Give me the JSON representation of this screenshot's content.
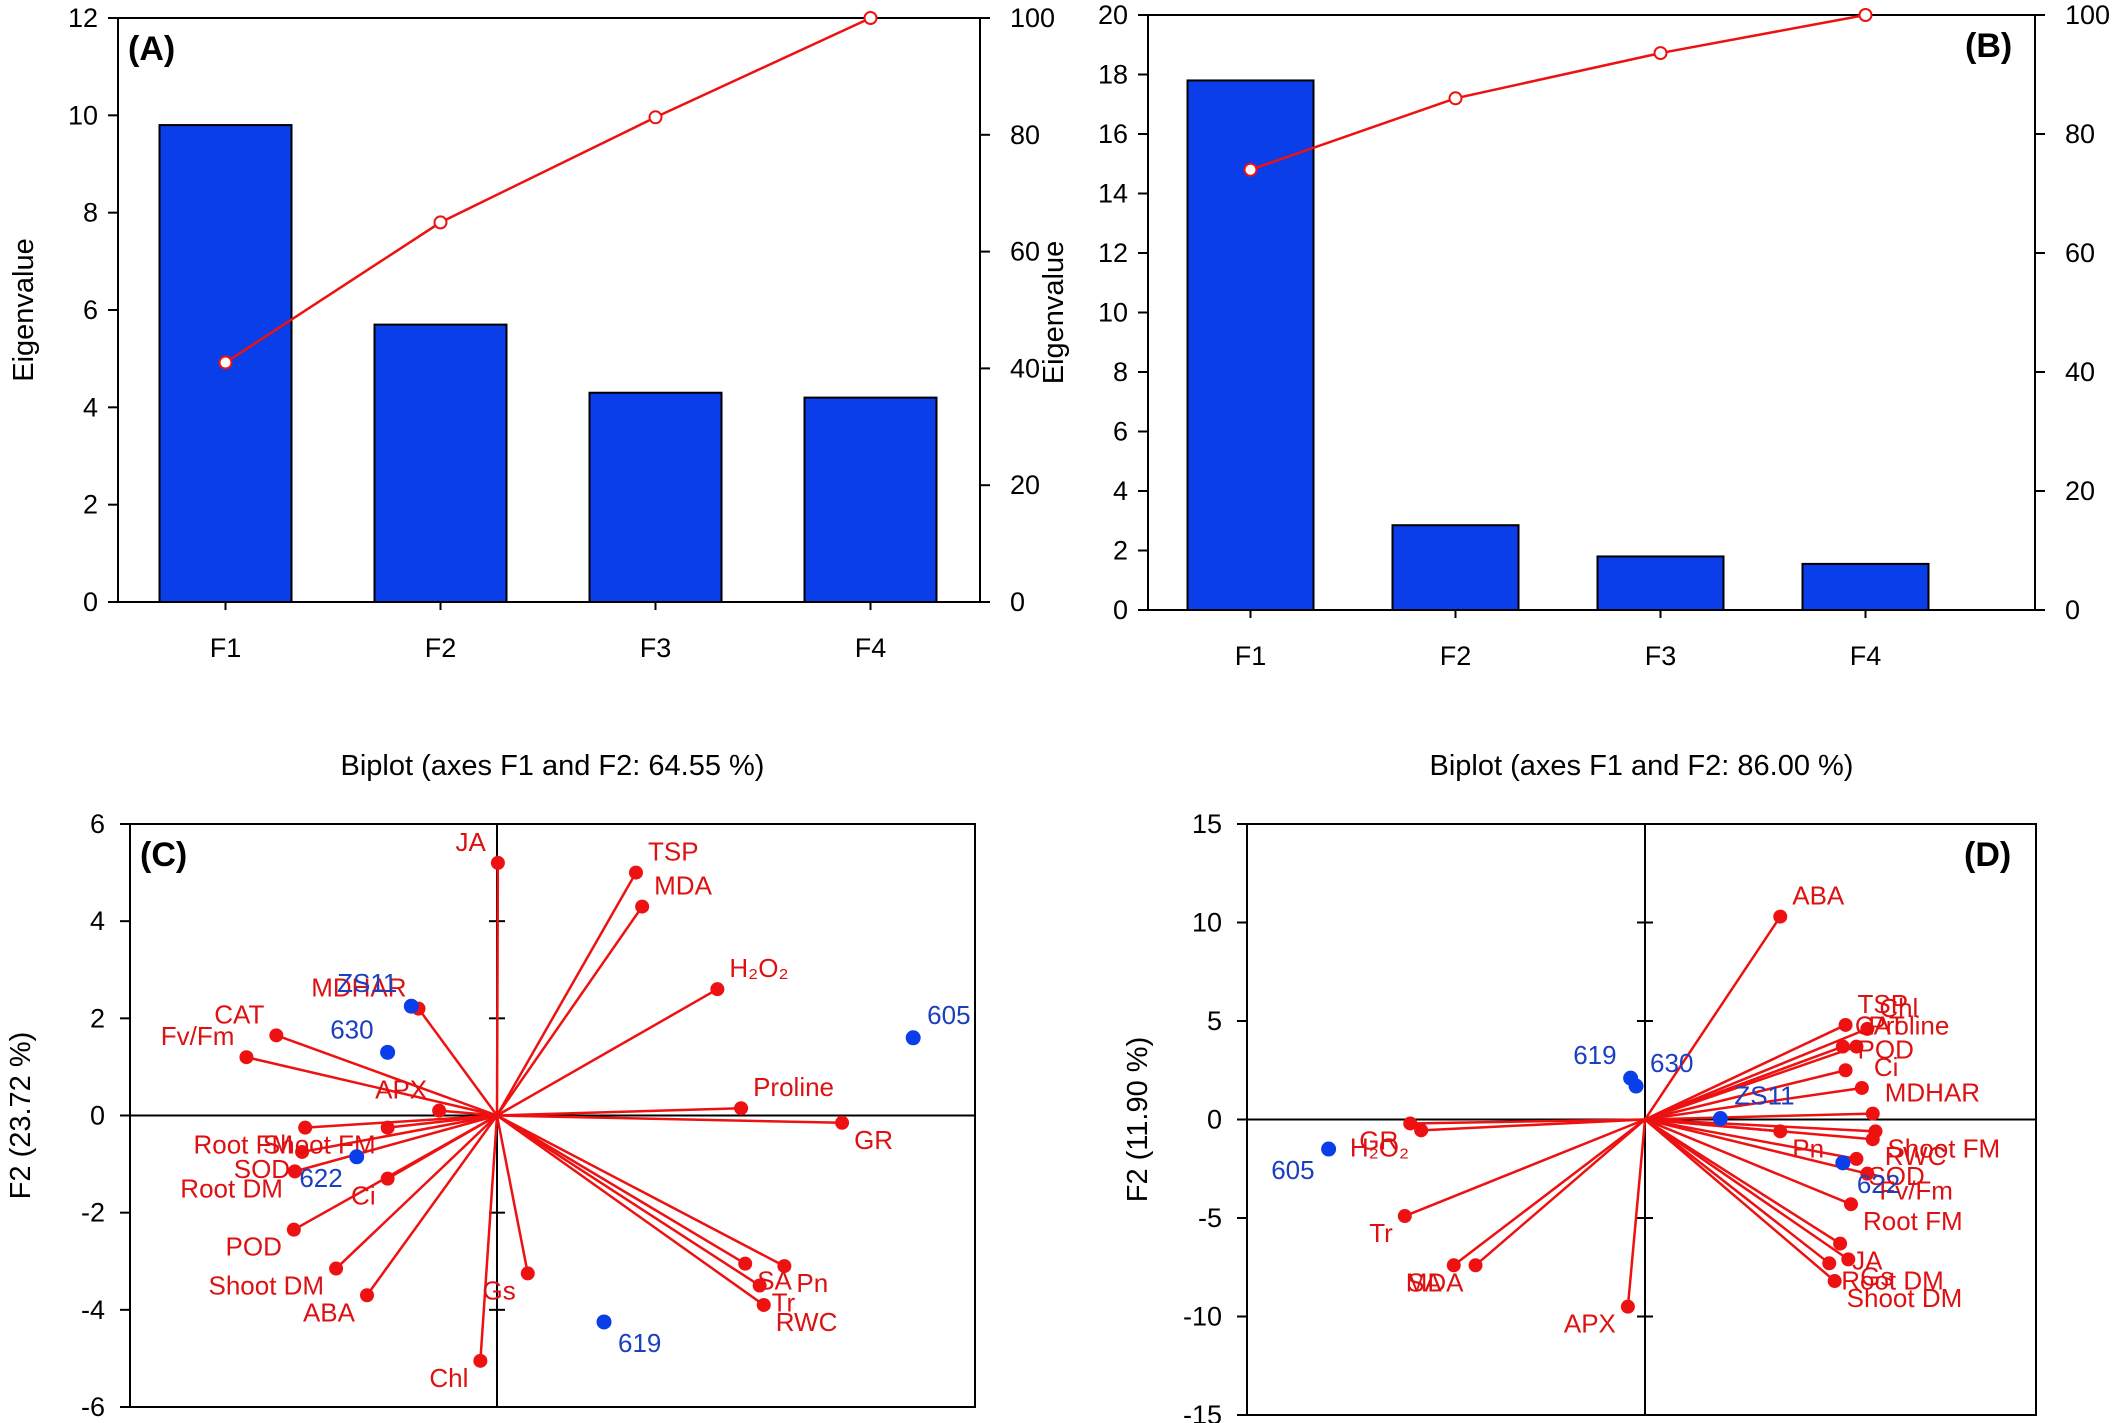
{
  "panels": [
    {
      "id": "A",
      "label": "(A)",
      "chart_data": {
        "type": "bar",
        "categories": [
          "F1",
          "F2",
          "F3",
          "F4"
        ],
        "values": [
          9.8,
          5.7,
          4.3,
          4.2
        ],
        "cumulative_percent": [
          41,
          65,
          83,
          100
        ],
        "ylabel": "Eigenvalue",
        "ylim": [
          0,
          12
        ],
        "yticks": [
          "0",
          "2",
          "4",
          "6",
          "8",
          "10",
          "12"
        ],
        "y2lim": [
          0,
          100
        ],
        "y2ticks": [
          "0",
          "20",
          "40",
          "60",
          "80",
          "100"
        ]
      }
    },
    {
      "id": "B",
      "label": "(B)",
      "chart_data": {
        "type": "bar",
        "categories": [
          "F1",
          "F2",
          "F3",
          "F4"
        ],
        "values": [
          17.8,
          2.85,
          1.8,
          1.55
        ],
        "cumulative_percent": [
          74,
          86,
          93.6,
          100
        ],
        "ylabel": "Eigenvalue",
        "ylim": [
          0,
          20
        ],
        "yticks": [
          "0",
          "2",
          "4",
          "6",
          "8",
          "10",
          "12",
          "14",
          "16",
          "18",
          "20"
        ],
        "y2lim": [
          0,
          100
        ],
        "y2ticks": [
          "0",
          "20",
          "40",
          "60",
          "80",
          "100"
        ]
      }
    },
    {
      "id": "C",
      "label": "(C)",
      "chart_data": {
        "type": "scatter",
        "title": "Biplot (axes F1 and F2: 64.55 %)",
        "ylabel": "F2 (23.72 %)",
        "ylim": [
          -6,
          6
        ],
        "yticks": [
          "-6",
          "-4",
          "-2",
          "0",
          "2",
          "4",
          "6"
        ],
        "xlim": [
          -4.0,
          4.2
        ],
        "variables": [
          {
            "name": "JA",
            "x": -0.43,
            "y": 5.2
          },
          {
            "name": "TSP",
            "x": 0.91,
            "y": 5.0
          },
          {
            "name": "MDA",
            "x": 0.97,
            "y": 4.3
          },
          {
            "name": "H₂O₂",
            "x": 1.7,
            "y": 2.6
          },
          {
            "name": "Proline",
            "x": 1.93,
            "y": 0.15
          },
          {
            "name": "GR",
            "x": 2.91,
            "y": -0.15
          },
          {
            "name": "CAT",
            "x": -2.58,
            "y": 1.65
          },
          {
            "name": "Fv/Fm",
            "x": -2.87,
            "y": 1.2
          },
          {
            "name": "MDHAR",
            "x": -1.2,
            "y": 2.2
          },
          {
            "name": "APX",
            "x": -1.0,
            "y": 0.1
          },
          {
            "name": "Root FM",
            "x": -2.3,
            "y": -0.25
          },
          {
            "name": "SOD",
            "x": -2.33,
            "y": -0.75
          },
          {
            "name": "Root DM",
            "x": -2.4,
            "y": -1.15
          },
          {
            "name": "Ci",
            "x": -1.5,
            "y": -1.3
          },
          {
            "name": "Shoot FM",
            "x": -1.5,
            "y": -0.25
          },
          {
            "name": "POD",
            "x": -2.41,
            "y": -2.35
          },
          {
            "name": "Shoot DM",
            "x": -2.0,
            "y": -3.15
          },
          {
            "name": "ABA",
            "x": -1.7,
            "y": -3.7
          },
          {
            "name": "Chl",
            "x": -0.6,
            "y": -5.05
          },
          {
            "name": "Gs",
            "x": -0.14,
            "y": -3.25
          },
          {
            "name": "Pn",
            "x": 2.35,
            "y": -3.1
          },
          {
            "name": "SA",
            "x": 1.97,
            "y": -3.05
          },
          {
            "name": "Tr",
            "x": 2.11,
            "y": -3.5
          },
          {
            "name": "RWC",
            "x": 2.15,
            "y": -3.9
          }
        ],
        "observations": [
          {
            "name": "ZS11",
            "x": -1.27,
            "y": 2.25
          },
          {
            "name": "630",
            "x": -1.5,
            "y": 1.3
          },
          {
            "name": "605",
            "x": 3.6,
            "y": 1.6
          },
          {
            "name": "622",
            "x": -1.8,
            "y": -0.85
          },
          {
            "name": "619",
            "x": 0.6,
            "y": -4.25
          }
        ]
      }
    },
    {
      "id": "D",
      "label": "(D)",
      "chart_data": {
        "type": "scatter",
        "title": "Biplot (axes F1 and F2: 86.00 %)",
        "ylabel": "F2 (11.90 %)",
        "ylim": [
          -15,
          15
        ],
        "yticks": [
          "-15",
          "-10",
          "-5",
          "0",
          "5",
          "10",
          "15"
        ],
        "xlim": [
          -7.1,
          7.4
        ],
        "variables": [
          {
            "name": "ABA",
            "x": 2.7,
            "y": 10.3
          },
          {
            "name": "TSP",
            "x": 3.9,
            "y": 4.8
          },
          {
            "name": "Chl",
            "x": 4.3,
            "y": 4.6
          },
          {
            "name": "CAT",
            "x": 3.85,
            "y": 3.7
          },
          {
            "name": "Proline",
            "x": 4.1,
            "y": 3.7
          },
          {
            "name": "POD",
            "x": 3.9,
            "y": 2.5
          },
          {
            "name": "Ci",
            "x": 4.2,
            "y": 1.6
          },
          {
            "name": "MDHAR",
            "x": 4.4,
            "y": 0.3
          },
          {
            "name": "Shoot FM",
            "x": 4.45,
            "y": -0.6
          },
          {
            "name": "RWC",
            "x": 4.4,
            "y": -1.0
          },
          {
            "name": "Pn",
            "x": 2.7,
            "y": -0.6
          },
          {
            "name": "SOD",
            "x": 4.1,
            "y": -2.0
          },
          {
            "name": "Fv/Fm",
            "x": 4.3,
            "y": -2.75
          },
          {
            "name": "Root FM",
            "x": 4.0,
            "y": -4.3
          },
          {
            "name": "JA",
            "x": 3.8,
            "y": -6.3
          },
          {
            "name": "Gs",
            "x": 3.95,
            "y": -7.1
          },
          {
            "name": "Root DM",
            "x": 3.6,
            "y": -7.3
          },
          {
            "name": "Shoot DM",
            "x": 3.7,
            "y": -8.2
          },
          {
            "name": "APX",
            "x": -0.1,
            "y": -9.5
          },
          {
            "name": "GR",
            "x": -4.1,
            "y": -0.2
          },
          {
            "name": "H₂O₂",
            "x": -3.9,
            "y": -0.55
          },
          {
            "name": "Tr",
            "x": -4.2,
            "y": -4.9
          },
          {
            "name": "SA",
            "x": -3.3,
            "y": -7.4
          },
          {
            "name": "MDA",
            "x": -2.9,
            "y": -7.4
          }
        ],
        "observations": [
          {
            "name": "619",
            "x": -0.05,
            "y": 2.1
          },
          {
            "name": "630",
            "x": 0.05,
            "y": 1.7
          },
          {
            "name": "ZS11",
            "x": 1.6,
            "y": 0.05
          },
          {
            "name": "605",
            "x": -5.6,
            "y": -1.5
          },
          {
            "name": "622",
            "x": 3.85,
            "y": -2.2
          }
        ]
      }
    }
  ]
}
